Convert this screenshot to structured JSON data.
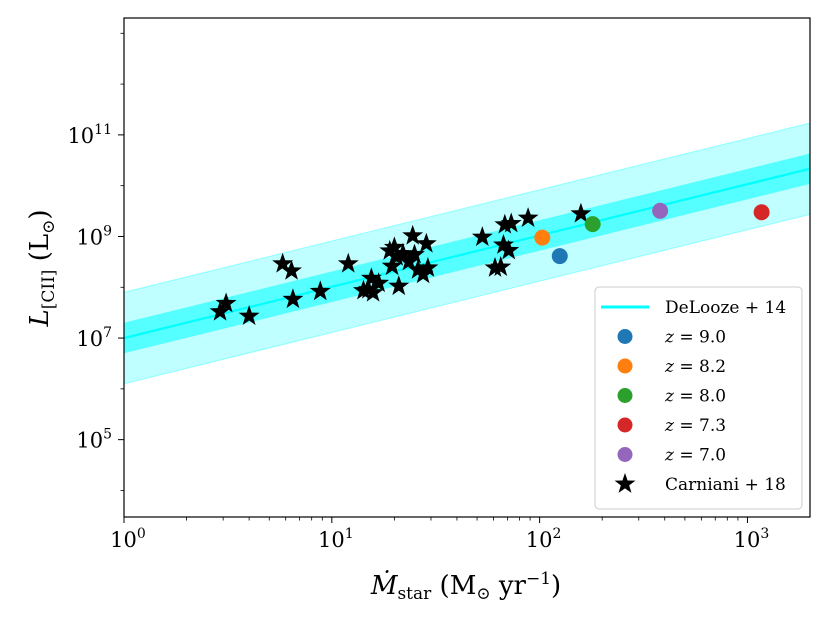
{
  "chart_data": {
    "type": "scatter",
    "xscale": "log",
    "yscale": "log",
    "xlim": [
      1,
      2000
    ],
    "ylim": [
      3000,
      20000000000000
    ],
    "xlabel": "Ṁstar (M⊙ yr−1)",
    "ylabel": "L[CII] (L⊙)",
    "x_ticks": [
      {
        "value": 1,
        "mantissa": "10",
        "exp": "0"
      },
      {
        "value": 10,
        "mantissa": "10",
        "exp": "1"
      },
      {
        "value": 100,
        "mantissa": "10",
        "exp": "2"
      },
      {
        "value": 1000,
        "mantissa": "10",
        "exp": "3"
      }
    ],
    "y_ticks": [
      {
        "value": 100000,
        "mantissa": "10",
        "exp": "5"
      },
      {
        "value": 10000000,
        "mantissa": "10",
        "exp": "7"
      },
      {
        "value": 1000000000,
        "mantissa": "10",
        "exp": "9"
      },
      {
        "value": 100000000000,
        "mantissa": "10",
        "exp": "11"
      }
    ],
    "relation": {
      "name": "DeLooze + 14",
      "intercept_log": 7.0,
      "slope": 1.01,
      "inner_band_dex": 0.3,
      "outer_band_dex": 0.9,
      "color": "#00ffff"
    },
    "series": [
      {
        "name": "z = 9.0",
        "label": "z = 9.0",
        "marker": "circle",
        "color": "#1f77b4",
        "points": [
          {
            "x": 125,
            "y": 410000000
          }
        ]
      },
      {
        "name": "z = 8.2",
        "label": "z = 8.2",
        "marker": "circle",
        "color": "#ff7f0e",
        "points": [
          {
            "x": 103,
            "y": 950000000
          }
        ]
      },
      {
        "name": "z = 8.0",
        "label": "z = 8.0",
        "marker": "circle",
        "color": "#2ca02c",
        "points": [
          {
            "x": 180,
            "y": 1750000000
          }
        ]
      },
      {
        "name": "z = 7.3",
        "label": "z = 7.3",
        "marker": "circle",
        "color": "#d62728",
        "points": [
          {
            "x": 1170,
            "y": 3000000000
          }
        ]
      },
      {
        "name": "z = 7.0",
        "label": "z = 7.0",
        "marker": "circle",
        "color": "#9467bd",
        "points": [
          {
            "x": 380,
            "y": 3200000000
          }
        ]
      },
      {
        "name": "Carniani + 18",
        "label": "Carniani + 18",
        "marker": "star",
        "color": "#000000",
        "points": [
          {
            "x": 2.9,
            "y": 33000000
          },
          {
            "x": 3.1,
            "y": 48000000
          },
          {
            "x": 4.0,
            "y": 27000000
          },
          {
            "x": 5.8,
            "y": 290000000
          },
          {
            "x": 6.4,
            "y": 210000000
          },
          {
            "x": 6.5,
            "y": 58000000
          },
          {
            "x": 8.8,
            "y": 83000000
          },
          {
            "x": 12.0,
            "y": 290000000
          },
          {
            "x": 14.2,
            "y": 86000000
          },
          {
            "x": 15.0,
            "y": 90000000
          },
          {
            "x": 15.5,
            "y": 150000000
          },
          {
            "x": 15.8,
            "y": 78000000
          },
          {
            "x": 16.8,
            "y": 120000000
          },
          {
            "x": 19.0,
            "y": 520000000
          },
          {
            "x": 19.5,
            "y": 260000000
          },
          {
            "x": 20.0,
            "y": 610000000
          },
          {
            "x": 20.5,
            "y": 400000000
          },
          {
            "x": 21.0,
            "y": 105000000
          },
          {
            "x": 22.0,
            "y": 460000000
          },
          {
            "x": 23.5,
            "y": 320000000
          },
          {
            "x": 24.5,
            "y": 1030000000
          },
          {
            "x": 25.0,
            "y": 440000000
          },
          {
            "x": 26.0,
            "y": 220000000
          },
          {
            "x": 27.5,
            "y": 180000000
          },
          {
            "x": 28.5,
            "y": 720000000
          },
          {
            "x": 29.0,
            "y": 240000000
          },
          {
            "x": 53.0,
            "y": 970000000
          },
          {
            "x": 61.0,
            "y": 240000000
          },
          {
            "x": 65.0,
            "y": 250000000
          },
          {
            "x": 67.0,
            "y": 680000000
          },
          {
            "x": 68.0,
            "y": 1700000000
          },
          {
            "x": 71.0,
            "y": 530000000
          },
          {
            "x": 73.0,
            "y": 1800000000
          },
          {
            "x": 88.0,
            "y": 2300000000
          },
          {
            "x": 158.0,
            "y": 2800000000
          }
        ]
      }
    ],
    "legend": {
      "position": "lower-right",
      "entries": [
        "DeLooze + 14",
        "z = 9.0",
        "z = 8.2",
        "z = 8.0",
        "z = 7.3",
        "z = 7.0",
        "Carniani + 18"
      ]
    }
  }
}
